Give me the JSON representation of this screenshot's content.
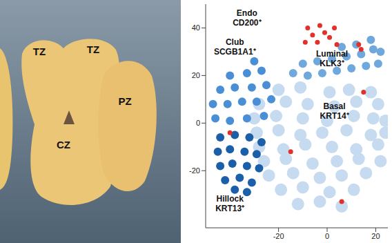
{
  "photo": {
    "labels": [
      "TZ",
      "TZ",
      "CZ",
      "PZ"
    ]
  },
  "chart_data": {
    "type": "scatter",
    "xlim": [
      -50,
      25
    ],
    "ylim": [
      -44,
      50
    ],
    "xticks": [
      -20,
      0,
      20
    ],
    "yticks": [
      -20,
      0,
      20,
      40
    ],
    "grid": false,
    "series": [
      {
        "name": "Basal",
        "color": "#c6dbef",
        "x": [
          -20,
          -11,
          1,
          9,
          18,
          -28,
          -17,
          -8,
          3,
          12,
          21,
          -30,
          -21,
          -10,
          0,
          11,
          19,
          24,
          -29,
          -20,
          -11,
          -2,
          8,
          18,
          24,
          -28,
          -18,
          -9,
          2,
          12,
          21,
          -26,
          -17,
          -6,
          4,
          13,
          22,
          -24,
          -14,
          -3,
          6,
          16,
          -19,
          -10,
          1,
          11,
          -12,
          -3,
          6
        ],
        "values": [
          14,
          15,
          13,
          14,
          13,
          8,
          9,
          8,
          7,
          9,
          8,
          2,
          3,
          2,
          1,
          3,
          2,
          1,
          -4,
          -3,
          -5,
          -4,
          -3,
          -5,
          -4,
          -10,
          -11,
          -9,
          -10,
          -11,
          -9,
          -16,
          -15,
          -17,
          -16,
          -15,
          -16,
          -22,
          -21,
          -23,
          -22,
          -21,
          -28,
          -27,
          -29,
          -28,
          -34,
          -33,
          -35
        ]
      },
      {
        "name": "Luminal",
        "color": "#6fa8dc",
        "x": [
          -14,
          -8,
          -2,
          4,
          10,
          16,
          21,
          -10,
          -4,
          2,
          8,
          14,
          19,
          6,
          12,
          18,
          22
        ],
        "values": [
          21,
          20,
          21,
          22,
          23,
          24,
          25,
          25,
          26,
          27,
          28,
          29,
          31,
          32,
          33,
          35,
          30
        ]
      },
      {
        "name": "Club",
        "color": "#4a8fd6",
        "x": [
          -46,
          -40,
          -33,
          -26,
          -47,
          -41,
          -35,
          -29,
          -23,
          -44,
          -38,
          -31,
          -25,
          -40,
          -33,
          -27,
          -30
        ],
        "values": [
          2,
          1,
          2,
          3,
          8,
          8,
          9,
          9,
          10,
          14,
          15,
          15,
          16,
          20,
          21,
          22,
          26
        ]
      },
      {
        "name": "Hillock",
        "color": "#1a5fa8",
        "x": [
          -44,
          -38,
          -32,
          -27,
          -45,
          -40,
          -34,
          -29,
          -44,
          -39,
          -33,
          -28,
          -42,
          -36,
          -31,
          -38,
          -33
        ],
        "values": [
          -6,
          -5,
          -6,
          -8,
          -12,
          -11,
          -12,
          -13,
          -18,
          -17,
          -18,
          -19,
          -24,
          -23,
          -25,
          -28,
          -29
        ]
      },
      {
        "name": "Endo",
        "color": "#e2302a",
        "x": [
          -8,
          -6,
          -3,
          -9,
          -4,
          1,
          3,
          4,
          -1,
          13,
          14,
          15,
          -15,
          6,
          -40
        ],
        "values": [
          40,
          37,
          41,
          34,
          34,
          36,
          40,
          33,
          38,
          33,
          31,
          13,
          -12,
          -33,
          -4
        ]
      }
    ],
    "annotations": [
      {
        "text": [
          "Endo",
          "CD200⁺"
        ],
        "x": -33,
        "y": 45
      },
      {
        "text": [
          "Club",
          "SCGB1A1⁺"
        ],
        "x": -38,
        "y": 33
      },
      {
        "text": [
          "Luminal",
          "KLK3⁺"
        ],
        "x": 2,
        "y": 28
      },
      {
        "text": [
          "Basal",
          "KRT14⁺"
        ],
        "x": 3,
        "y": 6
      },
      {
        "text": [
          "Hillock",
          "KRT13⁺"
        ],
        "x": -40,
        "y": -33
      }
    ]
  }
}
